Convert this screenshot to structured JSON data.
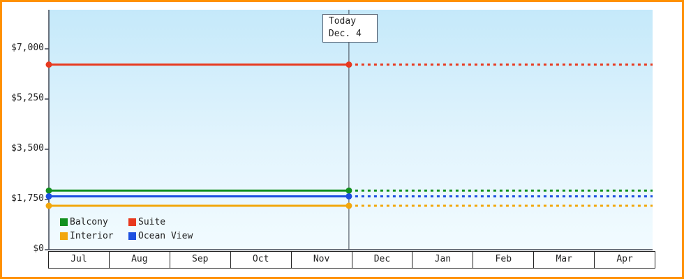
{
  "chart_data": {
    "type": "line",
    "description": "Cruise cabin price history by category with today marker; flat solid lines before today, dashed projection after",
    "x_categories": [
      "Jul",
      "Aug",
      "Sep",
      "Oct",
      "Nov",
      "Dec",
      "Jan",
      "Feb",
      "Mar",
      "Apr"
    ],
    "y_ticks": [
      {
        "label": "$0",
        "value": 0
      },
      {
        "label": "$1,750",
        "value": 1750
      },
      {
        "label": "$3,500",
        "value": 3500
      },
      {
        "label": "$5,250",
        "value": 5250
      },
      {
        "label": "$7,000",
        "value": 7000
      }
    ],
    "ylim": [
      0,
      7000
    ],
    "grid": false,
    "today": {
      "line1": "Today",
      "line2": "Dec. 4",
      "x_fraction": 0.497
    },
    "series": [
      {
        "name": "Suite",
        "color": "#e8391f",
        "value": 6450,
        "style_before_today": "solid",
        "style_after_today": "dashed"
      },
      {
        "name": "Balcony",
        "color": "#12901f",
        "value": 2060,
        "style_before_today": "solid",
        "style_after_today": "dashed"
      },
      {
        "name": "Ocean View",
        "color": "#1c4fe0",
        "value": 1860,
        "style_before_today": "solid",
        "style_after_today": "dashed"
      },
      {
        "name": "Interior",
        "color": "#f2a70c",
        "value": 1530,
        "style_before_today": "solid",
        "style_after_today": "dashed"
      }
    ],
    "legend": [
      {
        "label": "Balcony",
        "color": "#12901f"
      },
      {
        "label": "Suite",
        "color": "#e8391f"
      },
      {
        "label": "Interior",
        "color": "#f2a70c"
      },
      {
        "label": "Ocean View",
        "color": "#1c4fe0"
      }
    ],
    "legend_position": "bottom-left-inside",
    "colors": {
      "frame_border": "#ff9100",
      "axis": "#3c4350",
      "today_line": "#3c4350",
      "plot_bg_top": "#c5e9fa",
      "plot_bg_bottom": "#f2fbff"
    }
  }
}
